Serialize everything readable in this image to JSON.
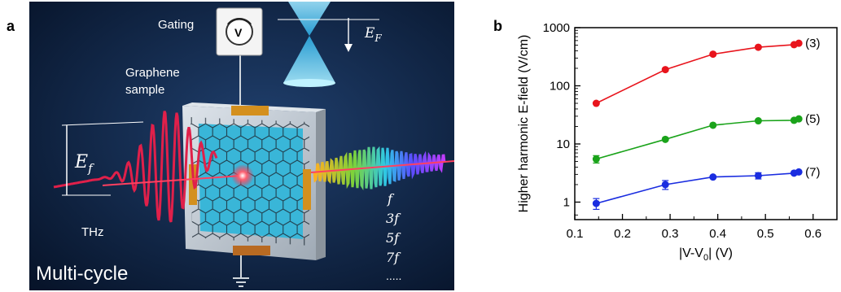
{
  "panel_a": {
    "letter": "a",
    "gating_label": "Gating",
    "knob_label": "V",
    "fermi_label": "E",
    "fermi_sub": "F",
    "graphene_label_1": "Graphene",
    "graphene_label_2": "sample",
    "field_label": "E",
    "field_sub": "f",
    "thz_label": "THz",
    "cycle_label": "Multi-cycle",
    "harmonics": [
      "f",
      "3f",
      "5f",
      "7f",
      "....."
    ],
    "colors": {
      "background": "#0b1a33",
      "pulse": "#e0204a",
      "graphene": "#39b6d8",
      "electrode": "#d4901e"
    }
  },
  "panel_b": {
    "letter": "b"
  },
  "chart_data": {
    "type": "line",
    "xlabel": "|V-V0| (V)",
    "xlabel_parts": {
      "before": "|V-V",
      "sub": "0",
      "after": "| (V)"
    },
    "ylabel": "Higher harmonic E-field (V/cm)",
    "xlim": [
      0.1,
      0.65
    ],
    "ylim": [
      0.5,
      1000
    ],
    "yscale": "log",
    "xticks": [
      0.1,
      0.2,
      0.3,
      0.4,
      0.5,
      0.6
    ],
    "xtick_labels": [
      "0.1",
      "0.2",
      "0.3",
      "0.4",
      "0.5",
      "0.6"
    ],
    "yticks": [
      1,
      10,
      100,
      1000
    ],
    "ytick_labels": [
      "1",
      "10",
      "100",
      "1000"
    ],
    "grid": false,
    "series": [
      {
        "name": "(3)",
        "color": "#e8141c",
        "x": [
          0.145,
          0.29,
          0.39,
          0.485,
          0.56,
          0.57
        ],
        "y": [
          50,
          190,
          350,
          460,
          510,
          540
        ],
        "yerr": [
          0,
          0,
          0,
          0,
          0,
          0
        ]
      },
      {
        "name": "(5)",
        "color": "#1aa31a",
        "x": [
          0.145,
          0.29,
          0.39,
          0.485,
          0.56,
          0.57
        ],
        "y": [
          5.5,
          12,
          21,
          25,
          25.5,
          27
        ],
        "yerr": [
          0.8,
          0,
          0,
          0,
          0,
          0
        ]
      },
      {
        "name": "(7)",
        "color": "#1a2de0",
        "x": [
          0.145,
          0.29,
          0.39,
          0.485,
          0.56,
          0.57
        ],
        "y": [
          0.95,
          2.0,
          2.7,
          2.85,
          3.15,
          3.3
        ],
        "yerr": [
          0.2,
          0.35,
          0,
          0.35,
          0,
          0
        ]
      }
    ]
  }
}
